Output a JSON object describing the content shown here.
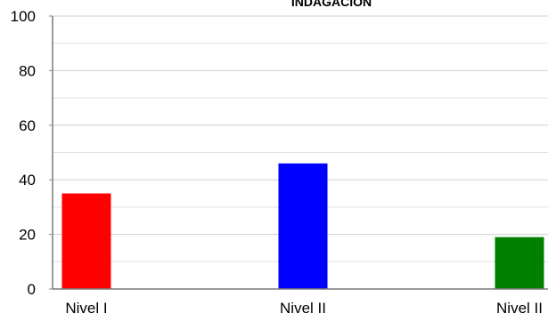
{
  "chart_data": {
    "type": "bar",
    "title": "INDAGACION",
    "categories": [
      "Nivel I",
      "Nivel II",
      "Nivel II"
    ],
    "values": [
      35,
      46,
      19
    ],
    "bar_colors": [
      "#ff0000",
      "#0000ff",
      "#008000"
    ],
    "ylim": [
      0,
      100
    ],
    "yticks": [
      "0",
      "20",
      "40",
      "60",
      "80",
      "100"
    ],
    "grid": true,
    "xlabel": "",
    "ylabel": "",
    "legend": "none"
  }
}
